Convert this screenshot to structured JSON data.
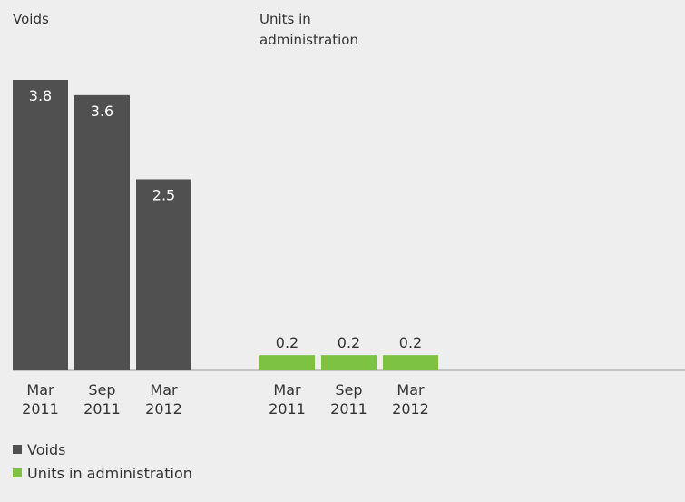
{
  "chart_data": [
    {
      "type": "bar",
      "title": "Voids",
      "categories": [
        "Mar 2011",
        "Sep 2011",
        "Mar 2012"
      ],
      "values": [
        3.8,
        3.6,
        2.5
      ],
      "color": "#505050"
    },
    {
      "type": "bar",
      "title": "Units in administration",
      "categories": [
        "Mar 2011",
        "Sep 2011",
        "Mar 2012"
      ],
      "values": [
        0.2,
        0.2,
        0.2
      ],
      "color": "#7dc242"
    }
  ]
}
